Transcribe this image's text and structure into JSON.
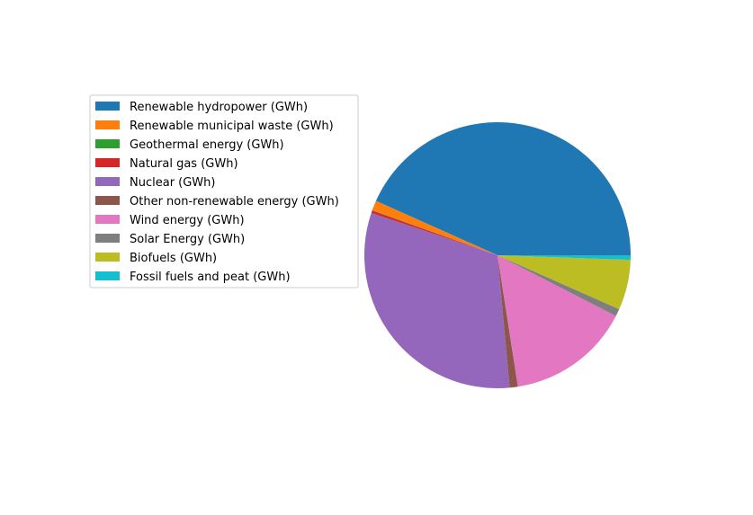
{
  "chart_data": {
    "type": "pie",
    "title": "",
    "legend_position": "left",
    "start_angle_deg": 0,
    "direction": "counterclockwise",
    "slices": [
      {
        "label": "Renewable hydropower (GWh)",
        "value": 43.3,
        "color": "#1f77b4"
      },
      {
        "label": "Renewable municipal waste (GWh)",
        "value": 1.2,
        "color": "#ff7f0e"
      },
      {
        "label": "Geothermal energy (GWh)",
        "value": 0.05,
        "color": "#2ca02c"
      },
      {
        "label": "Natural gas (GWh)",
        "value": 0.3,
        "color": "#d62728"
      },
      {
        "label": "Nuclear (GWh)",
        "value": 31.6,
        "color": "#9467bd"
      },
      {
        "label": "Other non-renewable energy (GWh)",
        "value": 1.0,
        "color": "#8c564b"
      },
      {
        "label": "Wind energy (GWh)",
        "value": 15.0,
        "color": "#e377c2"
      },
      {
        "label": "Solar Energy (GWh)",
        "value": 0.9,
        "color": "#7f7f7f"
      },
      {
        "label": "Biofuels (GWh)",
        "value": 6.1,
        "color": "#bcbd22"
      },
      {
        "label": "Fossil fuels and peat (GWh)",
        "value": 0.55,
        "color": "#17becf"
      }
    ]
  }
}
